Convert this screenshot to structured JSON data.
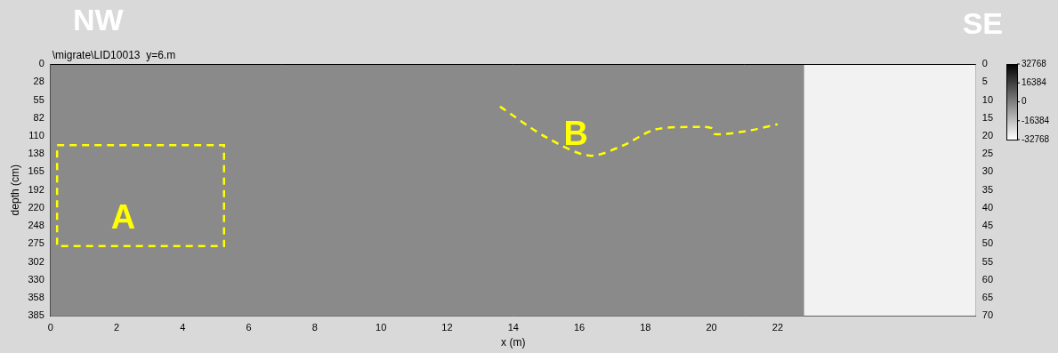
{
  "chart_data": {
    "type": "scatter",
    "title": "\\migrate\\LID10013  y=6.m",
    "corner_labels": {
      "left": "NW",
      "right": "SE"
    },
    "x_label": "x (m)",
    "y_label": "depth (cm)",
    "xlim": [
      0,
      28
    ],
    "xticks": [
      0,
      2,
      4,
      6,
      8,
      10,
      12,
      14,
      16,
      18,
      20,
      22
    ],
    "ylim": [
      385,
      0
    ],
    "yticks": [
      0,
      {
        "value": 27.5,
        "label": "28"
      },
      55,
      {
        "value": 82.5,
        "label": "82"
      },
      110,
      {
        "value": 137.5,
        "label": "138"
      },
      165,
      {
        "value": 192.5,
        "label": "192"
      },
      220,
      {
        "value": 247.5,
        "label": "248"
      },
      275,
      {
        "value": 302.5,
        "label": "302"
      },
      330,
      {
        "value": 357.5,
        "label": "358"
      },
      385
    ],
    "y2lim": [
      70,
      0
    ],
    "y2ticks": [
      0,
      5,
      10,
      15,
      20,
      25,
      30,
      35,
      40,
      45,
      50,
      55,
      60,
      65,
      70
    ],
    "grid": false,
    "radargram": {
      "x_end": 22.8,
      "color": "#8a8a8a"
    },
    "colorbar": {
      "range": [
        -32768,
        32768
      ],
      "ticks": [
        32768,
        16384,
        0,
        -16384,
        -32768
      ]
    },
    "annotations": [
      {
        "label": "A",
        "shape": "rectangle",
        "color": "#ffff00",
        "line_style": "dashed",
        "x": [
          0.2,
          5.25
        ],
        "y": [
          124,
          278
        ],
        "label_at": [
          2.2,
          237
        ]
      },
      {
        "label": "B",
        "shape": "curve",
        "color": "#ffff00",
        "line_style": "dashed",
        "x": [
          13.6,
          15,
          16.3,
          17.3,
          18.3,
          19.7,
          20,
          20.1,
          21,
          22
        ],
        "y": [
          65,
          112,
          140,
          125,
          100,
          96,
          98,
          107,
          103,
          92
        ],
        "label_at": [
          15.9,
          110
        ]
      }
    ]
  }
}
